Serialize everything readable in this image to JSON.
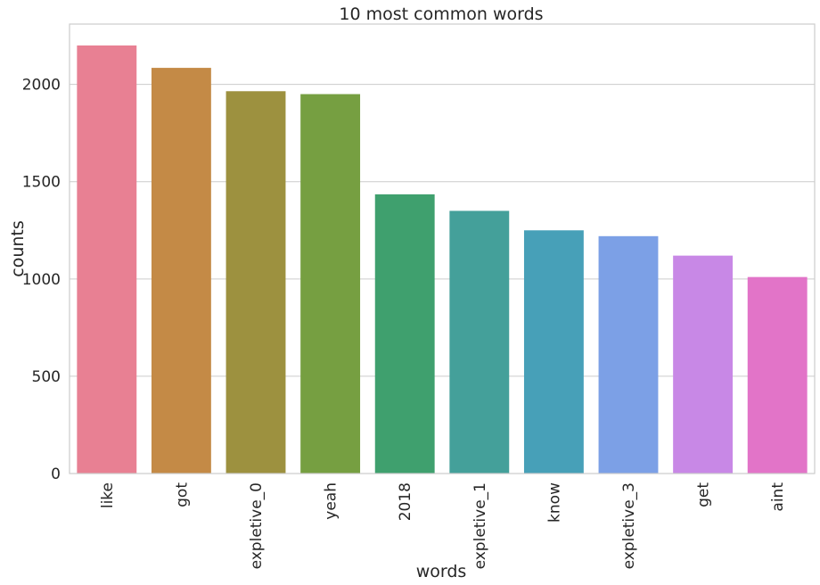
{
  "chart_data": {
    "type": "bar",
    "title": "10 most common words",
    "xlabel": "words",
    "ylabel": "counts",
    "categories": [
      "like",
      "got",
      "expletive_0",
      "yeah",
      "2018",
      "expletive_1",
      "know",
      "expletive_3",
      "get",
      "aint"
    ],
    "values": [
      2200,
      2085,
      1965,
      1950,
      1435,
      1350,
      1250,
      1220,
      1120,
      1010
    ],
    "colors": [
      "#e88093",
      "#c48a46",
      "#9d913f",
      "#769f41",
      "#3fa06e",
      "#44a09a",
      "#47a0b8",
      "#7ca0e6",
      "#c888e6",
      "#e274c8"
    ],
    "yticks": [
      0,
      500,
      1000,
      1500,
      2000
    ],
    "ylim": [
      0,
      2310
    ],
    "grid": "horizontal",
    "legend": "none"
  }
}
